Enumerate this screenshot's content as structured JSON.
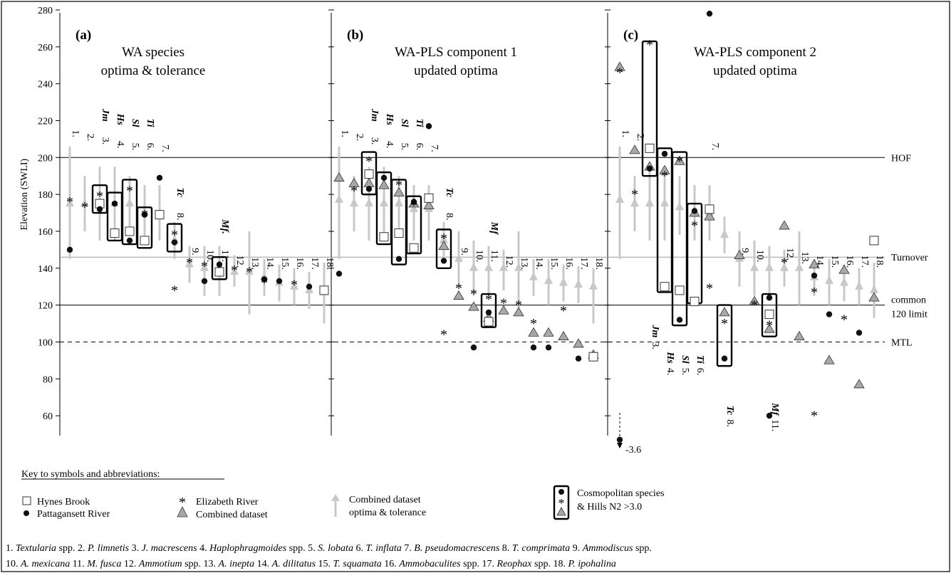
{
  "chart_data": {
    "type": "scatter",
    "y_axis": {
      "label": "Elevation (SWLI)",
      "ticks": [
        60,
        80,
        100,
        120,
        140,
        160,
        180,
        200,
        220,
        240,
        260,
        280
      ],
      "range": [
        50,
        280
      ]
    },
    "reference_lines": [
      {
        "label": "HOF",
        "y": 200,
        "style": "solid"
      },
      {
        "label": "Turnover",
        "y": 146,
        "style": "solid-grey"
      },
      {
        "label": "common 120 limit",
        "y": 120,
        "style": "solid"
      },
      {
        "label": "MTL",
        "y": 100,
        "style": "dashed"
      }
    ],
    "legend": {
      "title": "Key to symbols and abbreviations:",
      "hynes": "Hynes Brook",
      "patta": "Pattagansett River",
      "eliz": "Elizabeth River",
      "combined": "Combined dataset",
      "opt_tol": "Combined dataset optima & tolerance",
      "cosmo": "Cosmopolitan species & Hills N2 >3.0"
    },
    "species_key": [
      {
        "n": "1.",
        "name": "Textularia",
        "rest": " spp."
      },
      {
        "n": "2.",
        "name": "P. limnetis",
        "rest": ""
      },
      {
        "n": "3.",
        "name": "J. macrescens",
        "rest": ""
      },
      {
        "n": "4.",
        "name": "Haplophragmoides",
        "rest": " spp."
      },
      {
        "n": "5.",
        "name": "S. lobata",
        "rest": ""
      },
      {
        "n": "6.",
        "name": "T. inflata",
        "rest": ""
      },
      {
        "n": "7.",
        "name": "B. pseudomacrescens",
        "rest": ""
      },
      {
        "n": "8.",
        "name": "T. comprimata",
        "rest": ""
      },
      {
        "n": "9.",
        "name": "Ammodiscus",
        "rest": " spp."
      },
      {
        "n": "10.",
        "name": "A. mexicana",
        "rest": ""
      },
      {
        "n": "11.",
        "name": "M. fusca",
        "rest": ""
      },
      {
        "n": "12.",
        "name": "Ammotium",
        "rest": " spp."
      },
      {
        "n": "13.",
        "name": "A. inepta",
        "rest": ""
      },
      {
        "n": "14.",
        "name": "A. dilitatus",
        "rest": ""
      },
      {
        "n": "15.",
        "name": "T. squamata",
        "rest": ""
      },
      {
        "n": "16.",
        "name": "Ammobaculites",
        "rest": " spp."
      },
      {
        "n": "17.",
        "name": "Reophax",
        "rest": " spp."
      },
      {
        "n": "18.",
        "name": "P. ipohalina",
        "rest": ""
      }
    ],
    "panels": [
      {
        "id": "a",
        "letter": "(a)",
        "title": [
          "WA species",
          "optima & tolerance"
        ],
        "tolerance": [
          [
            175,
            206,
            145
          ],
          [
            175,
            190,
            160
          ],
          [
            175,
            195,
            155
          ],
          [
            175,
            195,
            155
          ],
          [
            175,
            190,
            160
          ],
          [
            170,
            185,
            155
          ],
          [
            170,
            185,
            155
          ],
          [
            155,
            165,
            145
          ],
          [
            142,
            152,
            132
          ],
          [
            140,
            152,
            125
          ],
          [
            140,
            152,
            125
          ],
          [
            138,
            147,
            130
          ],
          [
            138,
            160,
            115
          ],
          [
            135,
            145,
            125
          ],
          [
            132,
            142,
            122
          ],
          [
            130,
            140,
            120
          ],
          [
            128,
            138,
            118
          ],
          [
            127,
            143,
            110
          ]
        ],
        "hynes": [
          null,
          null,
          175,
          159,
          160,
          155,
          169,
          null,
          null,
          null,
          138,
          null,
          null,
          null,
          null,
          null,
          null,
          128
        ],
        "patta": [
          150,
          null,
          172,
          175,
          155,
          169,
          189,
          154,
          null,
          133,
          142,
          null,
          null,
          134,
          133,
          null,
          130,
          null
        ],
        "eliz": [
          177,
          174,
          180,
          175,
          183,
          170,
          null,
          159,
          144,
          142,
          null,
          140,
          139,
          133,
          null,
          132,
          null,
          null
        ],
        "eliz_extra": [
          {
            "i": 7,
            "y": 129
          }
        ],
        "combined": [],
        "boxes": [
          [
            3,
            185,
            170
          ],
          [
            4,
            181,
            155
          ],
          [
            5,
            188,
            153
          ],
          [
            6,
            173,
            151
          ],
          [
            8,
            164,
            149
          ],
          [
            11,
            146,
            134
          ]
        ],
        "numbers": {
          "1": 215,
          "2": 213,
          "3": 211,
          "4": 209,
          "5": 208,
          "6": 208,
          "7": 207,
          "8": 170,
          "9": 151,
          "10": 150,
          "11": 150,
          "12": 147,
          "13": 146,
          "14": 146,
          "15": 146,
          "16": 146,
          "17": 146,
          "18": 146
        },
        "abbr": {
          "3": "Jm",
          "4": "Hs",
          "5": "Sl",
          "6": "Ti",
          "8": "Tc",
          "11": "Mf."
        }
      },
      {
        "id": "b",
        "letter": "(b)",
        "title": [
          "WA-PLS component 1",
          "updated optima"
        ],
        "tolerance": [
          [
            177,
            206,
            145
          ],
          [
            175,
            190,
            160
          ],
          [
            175,
            195,
            155
          ],
          [
            175,
            195,
            155
          ],
          [
            175,
            190,
            160
          ],
          [
            172,
            185,
            155
          ],
          [
            172,
            185,
            155
          ],
          [
            155,
            165,
            145
          ],
          [
            145,
            160,
            130
          ],
          [
            140,
            155,
            125
          ],
          [
            140,
            152,
            125
          ],
          [
            140,
            150,
            128
          ],
          [
            140,
            160,
            118
          ],
          [
            135,
            145,
            125
          ],
          [
            133,
            145,
            120
          ],
          [
            132,
            142,
            122
          ],
          [
            131,
            141,
            121
          ],
          [
            130,
            140,
            110
          ]
        ],
        "hynes": [
          null,
          null,
          191,
          157,
          159,
          151,
          178,
          null,
          null,
          null,
          111,
          null,
          null,
          null,
          null,
          null,
          null,
          92
        ],
        "patta": [
          137,
          null,
          183,
          189,
          145,
          176,
          217,
          144,
          null,
          97,
          116,
          null,
          null,
          97,
          97,
          null,
          91,
          null
        ],
        "eliz": [
          null,
          183,
          199,
          null,
          186,
          175,
          null,
          157,
          130,
          127,
          124,
          122,
          121,
          111,
          null,
          118,
          null,
          null
        ],
        "eliz_extra": [
          {
            "i": 7,
            "y": 105
          }
        ],
        "combined": [
          189,
          186,
          186,
          185,
          181,
          175,
          174,
          152,
          125,
          119,
          113,
          117,
          116,
          105,
          105,
          103,
          99,
          93
        ],
        "boxes": [
          [
            3,
            203,
            180
          ],
          [
            4,
            192,
            153
          ],
          [
            5,
            188,
            142
          ],
          [
            6,
            179,
            148
          ],
          [
            8,
            161,
            140
          ],
          [
            11,
            126,
            108
          ]
        ],
        "numbers": {
          "1": 215,
          "2": 213,
          "3": 211,
          "4": 209,
          "5": 208,
          "6": 208,
          "7": 207,
          "8": 170,
          "9": 151,
          "10": 150,
          "11": 150,
          "12": 147,
          "13": 146,
          "14": 146,
          "15": 146,
          "16": 146,
          "17": 146,
          "18": 146
        },
        "abbr": {
          "3": "Jm",
          "4": "Hs",
          "5": "Sl",
          "6": "Ti",
          "8": "Tc",
          "11": "Mf"
        }
      },
      {
        "id": "c",
        "letter": "(c)",
        "title": [
          "WA-PLS component 2",
          "updated optima"
        ],
        "tolerance": [
          [
            177,
            206,
            145
          ],
          [
            175,
            190,
            160
          ],
          [
            175,
            195,
            155
          ],
          [
            175,
            195,
            155
          ],
          [
            173,
            190,
            158
          ],
          [
            170,
            185,
            155
          ],
          [
            170,
            185,
            155
          ],
          [
            158,
            168,
            148
          ],
          [
            145,
            160,
            130
          ],
          [
            140,
            155,
            125
          ],
          [
            140,
            152,
            125
          ],
          [
            140,
            150,
            130
          ],
          [
            140,
            160,
            120
          ],
          [
            135,
            145,
            125
          ],
          [
            133,
            145,
            120
          ],
          [
            132,
            142,
            122
          ],
          [
            130,
            140,
            120
          ],
          [
            128,
            143,
            113
          ]
        ],
        "hynes": [
          null,
          null,
          205,
          130,
          128,
          122,
          172,
          null,
          null,
          null,
          115,
          null,
          null,
          null,
          null,
          null,
          null,
          155
        ],
        "patta": [
          47,
          null,
          194,
          202,
          112,
          171,
          278,
          91,
          null,
          null,
          124,
          null,
          null,
          136,
          115,
          null,
          105,
          null
        ],
        "eliz": [
          247,
          181,
          262,
          191,
          199,
          164,
          130,
          111,
          null,
          121,
          110,
          144,
          null,
          128,
          null,
          113,
          null,
          null
        ],
        "eliz_extra": [
          {
            "i": 13,
            "y": 61
          }
        ],
        "patta_extra": [
          {
            "i": 10,
            "y": 60
          }
        ],
        "combined": [
          249,
          204,
          195,
          193,
          198,
          170,
          168,
          116,
          147,
          122,
          107,
          163,
          103,
          142,
          90,
          139,
          77,
          124
        ],
        "boxes": [
          [
            3,
            263,
            190
          ],
          [
            4,
            205,
            127
          ],
          [
            5,
            203,
            109
          ],
          [
            6,
            175,
            121
          ],
          [
            8,
            120,
            87
          ],
          [
            11,
            126,
            103
          ]
        ],
        "numbers": {
          "1": 215,
          "2": 213,
          "7": 208,
          "9": 151,
          "10": 150,
          "12": 151,
          "13": 149,
          "14": 147,
          "15": 147,
          "16": 147,
          "17": 147,
          "18": 147
        },
        "numbers_low": {
          "3": 100,
          "4": 86,
          "5": 86,
          "6": 86,
          "8": 58,
          "11": 58
        },
        "abbr_low": {
          "3": "Jm",
          "4": "Hs",
          "5": "Sl",
          "6": "Ti",
          "8": "Tc",
          "11": "Mf"
        },
        "offscale_label": "-3.6"
      }
    ]
  }
}
